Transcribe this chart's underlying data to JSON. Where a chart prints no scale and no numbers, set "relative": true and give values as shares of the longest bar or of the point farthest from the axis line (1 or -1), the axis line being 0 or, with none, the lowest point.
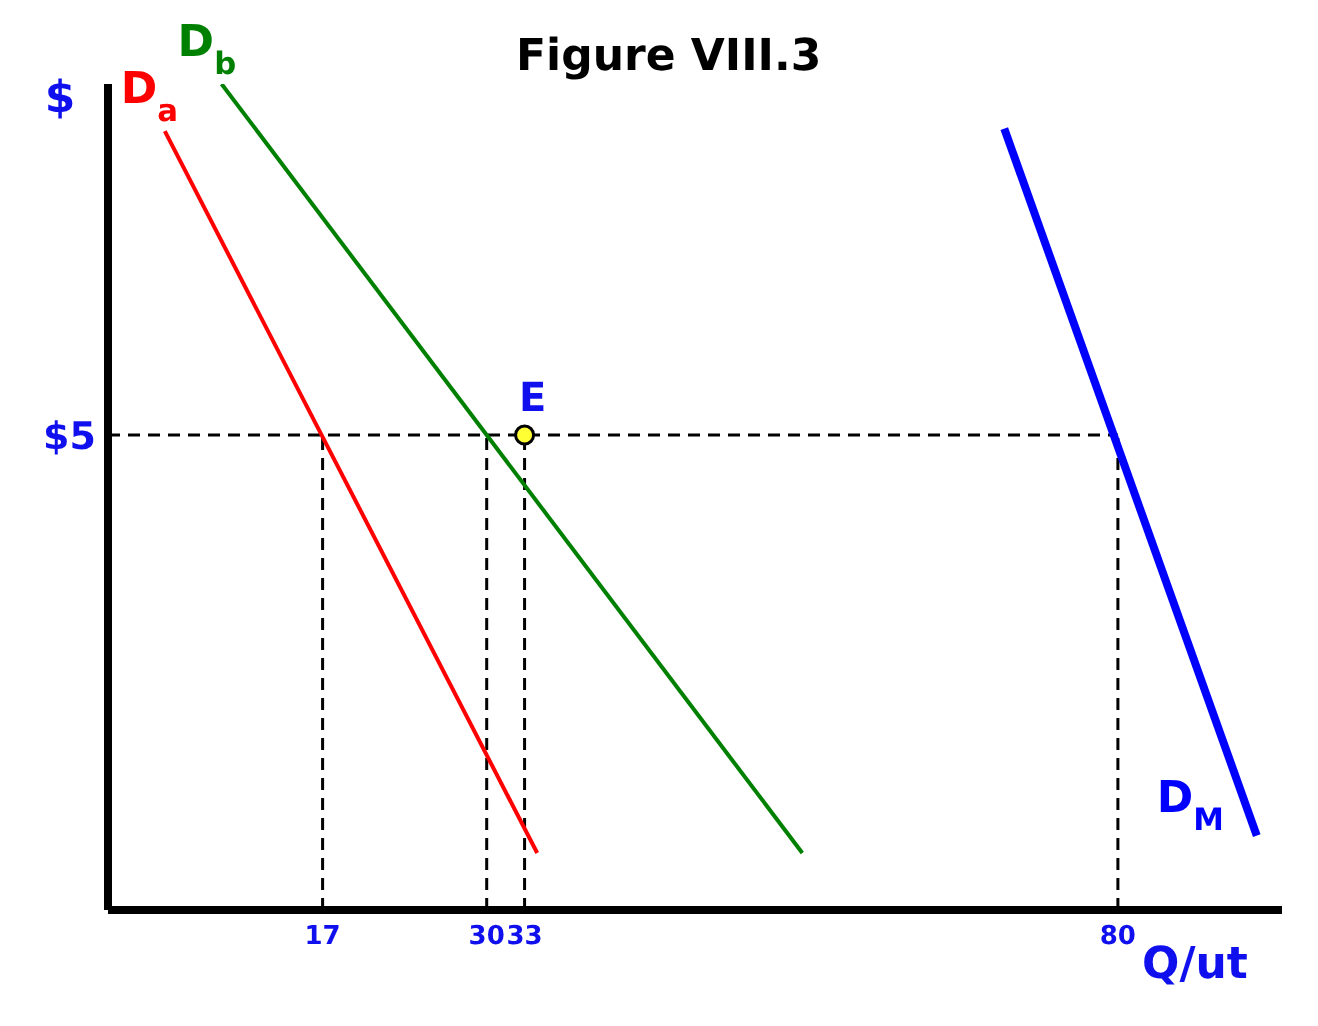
{
  "chart_data": {
    "type": "line",
    "title": "Figure VIII.3",
    "xlabel": "Q/ut",
    "ylabel": "$",
    "relative": true,
    "xlim": [
      0,
      93
    ],
    "xticks": [
      17,
      30,
      33,
      80
    ],
    "series": [
      {
        "name": "D$_{a}$",
        "color": "#ff0000",
        "x": [
          4.5,
          34
        ],
        "values": [
          0.943,
          0.069
        ]
      },
      {
        "name": "D$_{b}$",
        "color": "#008000",
        "x": [
          9,
          55
        ],
        "values": [
          1,
          0.069
        ]
      },
      {
        "name": "D$_{M}$",
        "color": "#0000ff",
        "x": [
          91,
          71
        ],
        "values": [
          0.09,
          0.946
        ]
      },
      {
        "type": "scatter",
        "marker": "circle",
        "color": "#ffff33",
        "x": [
          33
        ],
        "values": [
          0.575
        ]
      }
    ],
    "ref_lines": [
      {
        "axis": "y",
        "value": 0.575,
        "line_style": "dashed",
        "color": "#000000"
      },
      {
        "axis": "x",
        "value": 17,
        "line_style": "dashed",
        "color": "#000000"
      },
      {
        "axis": "x",
        "value": 30,
        "line_style": "dashed",
        "color": "#000000"
      },
      {
        "axis": "x",
        "value": 33,
        "line_style": "dashed",
        "color": "#000000"
      },
      {
        "axis": "x",
        "value": 80,
        "line_style": "dashed",
        "color": "#000000"
      }
    ],
    "annotations": [
      "$5",
      {
        "text": "E",
        "x": 33,
        "y": 0.575
      }
    ],
    "marker": "none",
    "line_style": "solid",
    "grid": false,
    "legend": false
  }
}
